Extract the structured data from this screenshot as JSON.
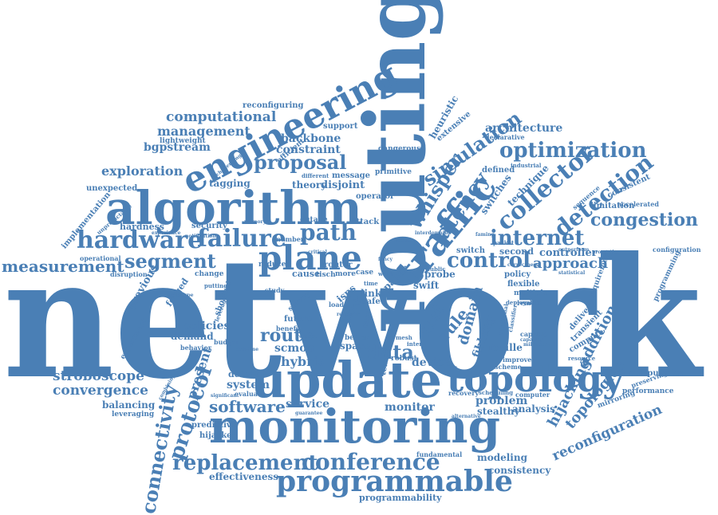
{
  "accent": "#4a7fb5",
  "words": [
    {
      "id": "network",
      "text": "network"
    },
    {
      "id": "routing",
      "text": "routing"
    },
    {
      "id": "algorithm",
      "text": "algorithm"
    },
    {
      "id": "engineering",
      "text": "engineering"
    },
    {
      "id": "update",
      "text": "update"
    },
    {
      "id": "monitoring",
      "text": "monitoring"
    },
    {
      "id": "programmable",
      "text": "programmable"
    },
    {
      "id": "topology",
      "text": "topology"
    },
    {
      "id": "plane",
      "text": "plane"
    },
    {
      "id": "traffic",
      "text": "traffic"
    },
    {
      "id": "conference",
      "text": "conference"
    },
    {
      "id": "replacement",
      "text": "replacement"
    },
    {
      "id": "hardware",
      "text": "hardware"
    },
    {
      "id": "failure",
      "text": "failure"
    },
    {
      "id": "segment",
      "text": "segment"
    },
    {
      "id": "measurement",
      "text": "measurement"
    },
    {
      "id": "optimization",
      "text": "optimization"
    },
    {
      "id": "internet",
      "text": "internet"
    },
    {
      "id": "control",
      "text": "control"
    },
    {
      "id": "collector",
      "text": "collector"
    },
    {
      "id": "detection",
      "text": "detection"
    },
    {
      "id": "congestion",
      "text": "congestion"
    },
    {
      "id": "simulation",
      "text": "simulation"
    },
    {
      "id": "latency",
      "text": "latency"
    },
    {
      "id": "whisper",
      "text": "whisper"
    },
    {
      "id": "proposal",
      "text": "proposal"
    },
    {
      "id": "path",
      "text": "path"
    },
    {
      "id": "computational",
      "text": "computational"
    },
    {
      "id": "management",
      "text": "management"
    },
    {
      "id": "exploration",
      "text": "exploration"
    },
    {
      "id": "software",
      "text": "software"
    },
    {
      "id": "stroboscope",
      "text": "stroboscope"
    },
    {
      "id": "convergence",
      "text": "convergence"
    },
    {
      "id": "connectivity",
      "text": "connectivity"
    },
    {
      "id": "protocol",
      "text": "protocol"
    },
    {
      "id": "reconfiguration",
      "text": "reconfiguration"
    },
    {
      "id": "topologies",
      "text": "topologies"
    },
    {
      "id": "hijacking",
      "text": "hijacking"
    },
    {
      "id": "addition",
      "text": "addition"
    },
    {
      "id": "data",
      "text": "data"
    },
    {
      "id": "route",
      "text": "route"
    },
    {
      "id": "rule",
      "text": "rule"
    },
    {
      "id": "domain",
      "text": "domain"
    },
    {
      "id": "fast",
      "text": "fast"
    },
    {
      "id": "approach",
      "text": "approach"
    },
    {
      "id": "controller",
      "text": "controller"
    },
    {
      "id": "architecture",
      "text": "architecture"
    },
    {
      "id": "backbone",
      "text": "backbone"
    },
    {
      "id": "constraint",
      "text": "constraint"
    },
    {
      "id": "bgpstream",
      "text": "bgpstream"
    },
    {
      "id": "lightweight",
      "text": "lightweight"
    },
    {
      "id": "tagging",
      "text": "tagging"
    },
    {
      "id": "theory",
      "text": "theory"
    },
    {
      "id": "disjoint",
      "text": "disjoint"
    },
    {
      "id": "policies",
      "text": "policies"
    },
    {
      "id": "demand",
      "text": "demand"
    },
    {
      "id": "hybrid",
      "text": "hybrid"
    },
    {
      "id": "scmon",
      "text": "scmon"
    },
    {
      "id": "service",
      "text": "service"
    },
    {
      "id": "monitor",
      "text": "monitor"
    },
    {
      "id": "system",
      "text": "system"
    },
    {
      "id": "detect",
      "text": "detect"
    },
    {
      "id": "device",
      "text": "device"
    },
    {
      "id": "problem",
      "text": "problem"
    },
    {
      "id": "analysis",
      "text": "analysis"
    },
    {
      "id": "stealthy",
      "text": "stealthy"
    },
    {
      "id": "modeling",
      "text": "modeling"
    },
    {
      "id": "consistency",
      "text": "consistency"
    },
    {
      "id": "effectiveness",
      "text": "effectiveness"
    },
    {
      "id": "programmability",
      "text": "programmability"
    },
    {
      "id": "balancing",
      "text": "balancing"
    },
    {
      "id": "predictive",
      "text": "predictive"
    },
    {
      "id": "hijacker",
      "text": "hijacker"
    },
    {
      "id": "leveraging",
      "text": "leveraging"
    },
    {
      "id": "present",
      "text": "present"
    },
    {
      "id": "previous",
      "text": "previous"
    },
    {
      "id": "forged",
      "text": "forged"
    },
    {
      "id": "shortest",
      "text": "shortest"
    },
    {
      "id": "hardness",
      "text": "hardness"
    },
    {
      "id": "security",
      "text": "security"
    },
    {
      "id": "unexpected",
      "text": "unexpected"
    },
    {
      "id": "implementation",
      "text": "implementation"
    },
    {
      "id": "reconfiguring",
      "text": "reconfiguring"
    },
    {
      "id": "heuristic",
      "text": "heuristic"
    },
    {
      "id": "extensive",
      "text": "extensive"
    },
    {
      "id": "support",
      "text": "support"
    },
    {
      "id": "efficient",
      "text": "efficient"
    },
    {
      "id": "dangerous",
      "text": "dangerous"
    },
    {
      "id": "primitive",
      "text": "primitive"
    },
    {
      "id": "defined",
      "text": "defined"
    },
    {
      "id": "technique",
      "text": "technique"
    },
    {
      "id": "switches",
      "text": "switches"
    },
    {
      "id": "consistent",
      "text": "consistent"
    },
    {
      "id": "limitation",
      "text": "limitation"
    },
    {
      "id": "sequence",
      "text": "sequence"
    },
    {
      "id": "accelerated",
      "text": "accelerated"
    },
    {
      "id": "declarative",
      "text": "declarative"
    },
    {
      "id": "industrial",
      "text": "industrial"
    },
    {
      "id": "second",
      "text": "second"
    },
    {
      "id": "switch",
      "text": "switch"
    },
    {
      "id": "policy",
      "text": "policy"
    },
    {
      "id": "flexible",
      "text": "flexible"
    },
    {
      "id": "multiple",
      "text": "multiple"
    },
    {
      "id": "remote",
      "text": "remote"
    },
    {
      "id": "configuration",
      "text": "configuration"
    },
    {
      "id": "programming",
      "text": "programming"
    },
    {
      "id": "requirement",
      "text": "requirement"
    },
    {
      "id": "computation",
      "text": "computation"
    },
    {
      "id": "performance",
      "text": "performance"
    },
    {
      "id": "mirroring",
      "text": "mirroring"
    },
    {
      "id": "preserving",
      "text": "preserving"
    },
    {
      "id": "delivery",
      "text": "delivery"
    },
    {
      "id": "transient",
      "text": "transient"
    },
    {
      "id": "compute",
      "text": "compute"
    },
    {
      "id": "feuille",
      "text": "feuille"
    },
    {
      "id": "fibbing",
      "text": "fibbing"
    },
    {
      "id": "improve",
      "text": "improve"
    },
    {
      "id": "scheme",
      "text": "scheme"
    },
    {
      "id": "capable",
      "text": "capable"
    },
    {
      "id": "recovery",
      "text": "recovery"
    },
    {
      "id": "scheduling",
      "text": "scheduling"
    },
    {
      "id": "computer",
      "text": "computer"
    },
    {
      "id": "deployable",
      "text": "deployable"
    },
    {
      "id": "fundamental",
      "text": "fundamental"
    },
    {
      "id": "experiment",
      "text": "experiment"
    },
    {
      "id": "behavior",
      "text": "behavior"
    },
    {
      "id": "budget",
      "text": "budget"
    },
    {
      "id": "benefit",
      "text": "benefit"
    },
    {
      "id": "future",
      "text": "future"
    },
    {
      "id": "survey",
      "text": "survey"
    },
    {
      "id": "study",
      "text": "study"
    },
    {
      "id": "reduce",
      "text": "reduce"
    },
    {
      "id": "number",
      "text": "number"
    },
    {
      "id": "outage",
      "text": "outage"
    },
    {
      "id": "cause",
      "text": "cause"
    },
    {
      "id": "router",
      "text": "router"
    },
    {
      "id": "more",
      "text": "more"
    },
    {
      "id": "tisch",
      "text": "tisch"
    },
    {
      "id": "case",
      "text": "case"
    },
    {
      "id": "paper",
      "text": "paper"
    },
    {
      "id": "link",
      "text": "link"
    },
    {
      "id": "safe",
      "text": "safe"
    },
    {
      "id": "isps",
      "text": "isps"
    },
    {
      "id": "load",
      "text": "load"
    },
    {
      "id": "blink",
      "text": "blink"
    },
    {
      "id": "operator",
      "text": "operator"
    },
    {
      "id": "attack",
      "text": "attack"
    },
    {
      "id": "message",
      "text": "message"
    },
    {
      "id": "different",
      "text": "different"
    },
    {
      "id": "operational",
      "text": "operational"
    },
    {
      "id": "disruption",
      "text": "disruption"
    },
    {
      "id": "change",
      "text": "change"
    },
    {
      "id": "putting",
      "text": "putting"
    },
    {
      "id": "leverage",
      "text": "leverage"
    },
    {
      "id": "space",
      "text": "space"
    },
    {
      "id": "better",
      "text": "better"
    },
    {
      "id": "robust",
      "text": "robust"
    },
    {
      "id": "tcams",
      "text": "tcams"
    },
    {
      "id": "swift",
      "text": "swift"
    },
    {
      "id": "probe",
      "text": "probe"
    },
    {
      "id": "public",
      "text": "public"
    },
    {
      "id": "evaluate",
      "text": "evaluate"
    },
    {
      "id": "significant",
      "text": "significant"
    },
    {
      "id": "guarantee",
      "text": "guarantee"
    },
    {
      "id": "unpredictable",
      "text": "unpredictable"
    },
    {
      "id": "challenging",
      "text": "challenging"
    },
    {
      "id": "combining",
      "text": "combining"
    },
    {
      "id": "memory",
      "text": "memory"
    },
    {
      "id": "fancy",
      "text": "fancy"
    },
    {
      "id": "mesh",
      "text": "mesh"
    },
    {
      "id": "inter",
      "text": "inter"
    },
    {
      "id": "work",
      "text": "work"
    },
    {
      "id": "time",
      "text": "time"
    },
    {
      "id": "scale",
      "text": "scale"
    },
    {
      "id": "packet",
      "text": "packet"
    },
    {
      "id": "millisecond",
      "text": "millisecond"
    },
    {
      "id": "alternative",
      "text": "alternative"
    },
    {
      "id": "resource",
      "text": "resource"
    },
    {
      "id": "correctness",
      "text": "correctness"
    },
    {
      "id": "statistical",
      "text": "statistical"
    },
    {
      "id": "additional",
      "text": "additional"
    },
    {
      "id": "classifier",
      "text": "classifier"
    },
    {
      "id": "capacity",
      "text": "capacity"
    },
    {
      "id": "outperform",
      "text": "outperform"
    },
    {
      "id": "properties",
      "text": "properties"
    },
    {
      "id": "faming",
      "text": "faming"
    },
    {
      "id": "experience",
      "text": "experience"
    },
    {
      "id": "notification",
      "text": "notification"
    },
    {
      "id": "interdomain",
      "text": "interdomain"
    },
    {
      "id": "prototype",
      "text": "prototype"
    },
    {
      "id": "examine",
      "text": "examine"
    },
    {
      "id": "thing",
      "text": "thing"
    },
    {
      "id": "respect",
      "text": "respect"
    },
    {
      "id": "critical",
      "text": "critical"
    },
    {
      "id": "research",
      "text": "research"
    }
  ]
}
